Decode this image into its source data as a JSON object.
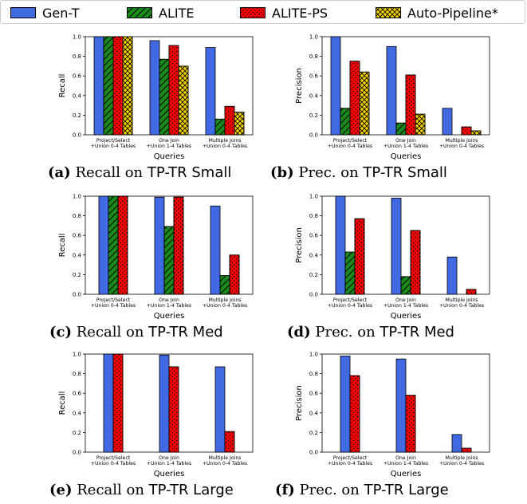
{
  "legend": [
    {
      "name": "Gen-T",
      "color": "#4169e1",
      "pattern": "none"
    },
    {
      "name": "ALITE",
      "color": "#1a8a1a",
      "pattern": "diag"
    },
    {
      "name": "ALITE-PS",
      "color": "#ff0000",
      "pattern": "dots"
    },
    {
      "name": "Auto-Pipeline*",
      "color": "#f0d000",
      "pattern": "cross"
    }
  ],
  "chart_data": [
    {
      "type": "bar",
      "caption_label": "(a)",
      "caption_pre": "Recall on",
      "caption_dataset": "TP-TR Small",
      "xlabel": "Queries",
      "ylabel": "Recall",
      "ylim": [
        0,
        1.0
      ],
      "yticks": [
        "0.0",
        "0.2",
        "0.4",
        "0.6",
        "0.8",
        "1.0"
      ],
      "categories": [
        [
          "Project/Select",
          "+Union 0-4 Tables"
        ],
        [
          "One Join",
          "+Union 1-4 Tables"
        ],
        [
          "Multiple Joins",
          "+Union 0-4 Tables"
        ]
      ],
      "series": [
        {
          "name": "Gen-T",
          "values": [
            1.0,
            0.96,
            0.89
          ]
        },
        {
          "name": "ALITE",
          "values": [
            1.0,
            0.77,
            0.16
          ]
        },
        {
          "name": "ALITE-PS",
          "values": [
            1.0,
            0.91,
            0.29
          ]
        },
        {
          "name": "Auto-Pipeline*",
          "values": [
            1.0,
            0.7,
            0.23
          ]
        }
      ]
    },
    {
      "type": "bar",
      "caption_label": "(b)",
      "caption_pre": "Prec. on",
      "caption_dataset": "TP-TR Small",
      "xlabel": "Queries",
      "ylabel": "Precision",
      "ylim": [
        0,
        1.0
      ],
      "yticks": [
        "0.0",
        "0.2",
        "0.4",
        "0.6",
        "0.8",
        "1.0"
      ],
      "categories": [
        [
          "Project/Select",
          "+Union 0-4 Tables"
        ],
        [
          "One Join",
          "+Union 1-4 Tables"
        ],
        [
          "Multiple Joins",
          "+Union 0-4 Tables"
        ]
      ],
      "series": [
        {
          "name": "Gen-T",
          "values": [
            1.0,
            0.9,
            0.27
          ]
        },
        {
          "name": "ALITE",
          "values": [
            0.27,
            0.12,
            null
          ]
        },
        {
          "name": "ALITE-PS",
          "values": [
            0.75,
            0.61,
            0.08
          ]
        },
        {
          "name": "Auto-Pipeline*",
          "values": [
            0.64,
            0.21,
            0.04
          ]
        }
      ]
    },
    {
      "type": "bar",
      "caption_label": "(c)",
      "caption_pre": "Recall on",
      "caption_dataset": "TP-TR Med",
      "xlabel": "Queries",
      "ylabel": "Recall",
      "ylim": [
        0,
        1.0
      ],
      "yticks": [
        "0.0",
        "0.2",
        "0.4",
        "0.6",
        "0.8",
        "1.0"
      ],
      "categories": [
        [
          "Project/Select",
          "+Union 0-4 Tables"
        ],
        [
          "One Join",
          "+Union 1-4 Tables"
        ],
        [
          "Multiple Joins",
          "+Union 0-4 Tables"
        ]
      ],
      "series": [
        {
          "name": "Gen-T",
          "values": [
            1.0,
            0.99,
            0.9
          ]
        },
        {
          "name": "ALITE",
          "values": [
            1.0,
            0.69,
            0.19
          ]
        },
        {
          "name": "ALITE-PS",
          "values": [
            1.0,
            0.99,
            0.4
          ]
        }
      ]
    },
    {
      "type": "bar",
      "caption_label": "(d)",
      "caption_pre": "Prec. on",
      "caption_dataset": "TP-TR Med",
      "xlabel": "Queries",
      "ylabel": "Precision",
      "ylim": [
        0,
        1.0
      ],
      "yticks": [
        "0.0",
        "0.2",
        "0.4",
        "0.6",
        "0.8",
        "1.0"
      ],
      "categories": [
        [
          "Project/Select",
          "+Union 0-4 Tables"
        ],
        [
          "One Join",
          "+Union 1-4 Tables"
        ],
        [
          "Multiple Joins",
          "+Union 0-4 Tables"
        ]
      ],
      "series": [
        {
          "name": "Gen-T",
          "values": [
            1.0,
            0.98,
            0.38
          ]
        },
        {
          "name": "ALITE",
          "values": [
            0.43,
            0.18,
            null
          ]
        },
        {
          "name": "ALITE-PS",
          "values": [
            0.77,
            0.65,
            0.05
          ]
        }
      ]
    },
    {
      "type": "bar",
      "caption_label": "(e)",
      "caption_pre": "Recall on",
      "caption_dataset": "TP-TR Large",
      "xlabel": "Queries",
      "ylabel": "Recall",
      "ylim": [
        0,
        1.0
      ],
      "yticks": [
        "0.0",
        "0.2",
        "0.4",
        "0.6",
        "0.8",
        "1.0"
      ],
      "categories": [
        [
          "Project/Select",
          "+Union 0-4 Tables"
        ],
        [
          "One Join",
          "+Union 1-4 Tables"
        ],
        [
          "Multiple Joins",
          "+Union 0-4 Tables"
        ]
      ],
      "series": [
        {
          "name": "Gen-T",
          "values": [
            1.0,
            0.99,
            0.87
          ]
        },
        {
          "name": "ALITE-PS",
          "values": [
            1.0,
            0.87,
            0.21
          ]
        }
      ]
    },
    {
      "type": "bar",
      "caption_label": "(f)",
      "caption_pre": "Prec. on",
      "caption_dataset": "TP-TR Large",
      "xlabel": "Queries",
      "ylabel": "Precision",
      "ylim": [
        0,
        1.0
      ],
      "yticks": [
        "0.0",
        "0.2",
        "0.4",
        "0.6",
        "0.8",
        "1.0"
      ],
      "categories": [
        [
          "Project/Select",
          "+Union 0-4 Tables"
        ],
        [
          "One Join",
          "+Union 1-4 Tables"
        ],
        [
          "Multiple Joins",
          "+Union 0-4 Tables"
        ]
      ],
      "series": [
        {
          "name": "Gen-T",
          "values": [
            0.98,
            0.95,
            0.18
          ]
        },
        {
          "name": "ALITE-PS",
          "values": [
            0.78,
            0.58,
            0.04
          ]
        }
      ]
    }
  ]
}
